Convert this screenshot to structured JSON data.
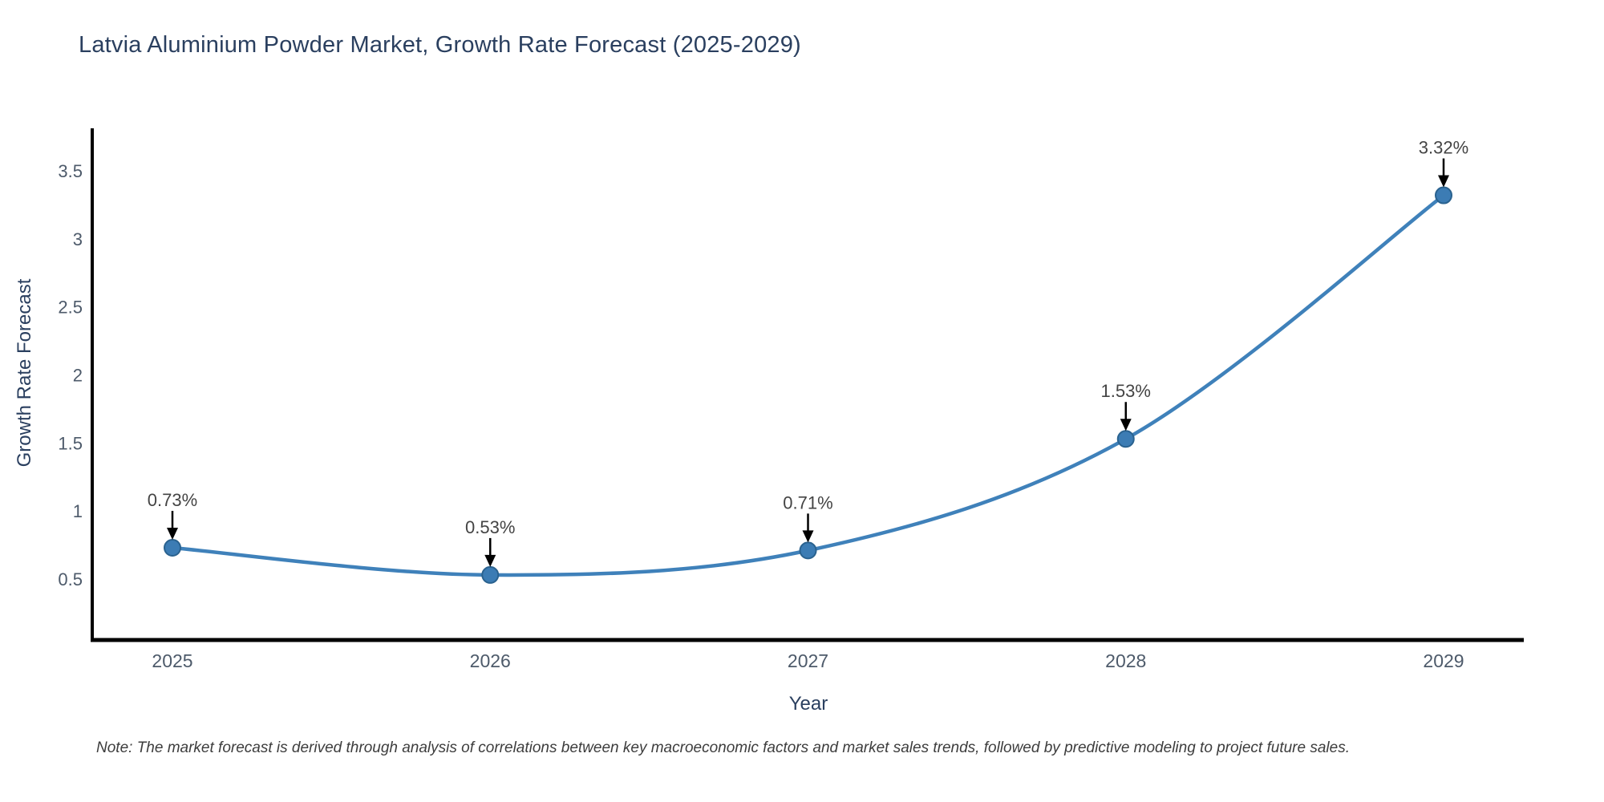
{
  "chart_data": {
    "type": "line",
    "title": "Latvia Aluminium Powder Market, Growth Rate Forecast (2025-2029)",
    "xlabel": "Year",
    "ylabel": "Growth Rate Forecast",
    "categories": [
      "2025",
      "2026",
      "2027",
      "2028",
      "2029"
    ],
    "series": [
      {
        "name": "Growth Rate Forecast",
        "values": [
          0.73,
          0.53,
          0.71,
          1.53,
          3.32
        ],
        "point_labels": [
          "0.73%",
          "0.53%",
          "0.71%",
          "1.53%",
          "3.32%"
        ]
      }
    ],
    "y_ticks": [
      0.5,
      1,
      1.5,
      2,
      2.5,
      3,
      3.5
    ],
    "ylim": [
      0.05,
      3.81
    ],
    "grid": false,
    "legend_position": "none",
    "line_smoothing": "spline",
    "colors": {
      "line": "#3f81ba",
      "marker_fill": "#3c7cb4",
      "marker_edge": "#2a628f",
      "axis": "#000000",
      "tick_label": "#4d5a6a",
      "annotation_text": "#444444",
      "annotation_arrow": "#000000",
      "title": "#2a3f5f"
    }
  },
  "note": "Note: The market forecast is derived through analysis of correlations between key macroeconomic factors and market sales trends, followed by predictive modeling to project future sales."
}
